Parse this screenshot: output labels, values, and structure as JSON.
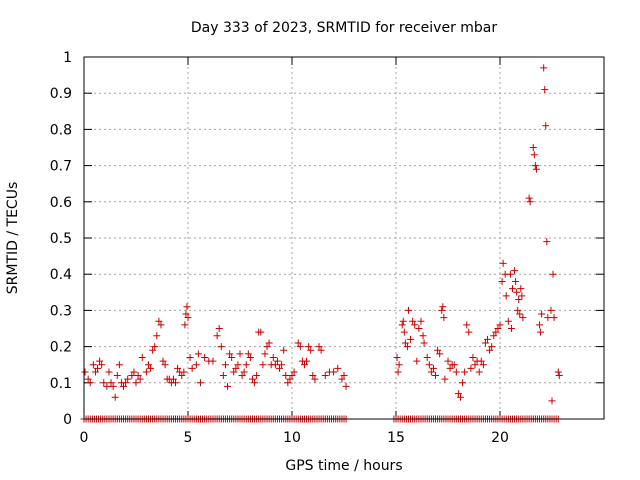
{
  "chart_data": {
    "type": "scatter",
    "title": "Day 333 of 2023, SRMTID for receiver mbar",
    "xlabel": "GPS time / hours",
    "ylabel": "SRMTID / TECUs",
    "xlim": [
      0,
      25
    ],
    "ylim": [
      0,
      1
    ],
    "x_ticks": [
      "0",
      "5",
      "10",
      "15",
      "20"
    ],
    "y_ticks": [
      "0",
      "0.1",
      "0.2",
      "0.3",
      "0.4",
      "0.5",
      "0.6",
      "0.7",
      "0.8",
      "0.9",
      "1"
    ],
    "grid": true,
    "marker": "+",
    "color": "#cc0000",
    "series": [
      {
        "name": "SRMTID",
        "points": [
          [
            0.05,
            0.13
          ],
          [
            0.2,
            0.11
          ],
          [
            0.3,
            0.1
          ],
          [
            0.45,
            0.15
          ],
          [
            0.55,
            0.13
          ],
          [
            0.65,
            0.14
          ],
          [
            0.75,
            0.16
          ],
          [
            0.85,
            0.15
          ],
          [
            0.95,
            0.1
          ],
          [
            1.1,
            0.09
          ],
          [
            1.2,
            0.13
          ],
          [
            1.3,
            0.1
          ],
          [
            1.4,
            0.09
          ],
          [
            1.5,
            0.06
          ],
          [
            1.6,
            0.12
          ],
          [
            1.7,
            0.15
          ],
          [
            1.8,
            0.1
          ],
          [
            1.9,
            0.09
          ],
          [
            2.0,
            0.1
          ],
          [
            2.1,
            0.11
          ],
          [
            2.3,
            0.12
          ],
          [
            2.4,
            0.13
          ],
          [
            2.5,
            0.1
          ],
          [
            2.6,
            0.12
          ],
          [
            2.7,
            0.11
          ],
          [
            2.8,
            0.17
          ],
          [
            3.0,
            0.13
          ],
          [
            3.1,
            0.15
          ],
          [
            3.2,
            0.14
          ],
          [
            3.3,
            0.19
          ],
          [
            3.4,
            0.2
          ],
          [
            3.5,
            0.23
          ],
          [
            3.6,
            0.27
          ],
          [
            3.7,
            0.26
          ],
          [
            3.8,
            0.16
          ],
          [
            3.9,
            0.15
          ],
          [
            4.0,
            0.11
          ],
          [
            4.1,
            0.11
          ],
          [
            4.2,
            0.1
          ],
          [
            4.3,
            0.11
          ],
          [
            4.4,
            0.1
          ],
          [
            4.5,
            0.14
          ],
          [
            4.6,
            0.13
          ],
          [
            4.7,
            0.12
          ],
          [
            4.8,
            0.13
          ],
          [
            4.85,
            0.26
          ],
          [
            4.9,
            0.29
          ],
          [
            4.95,
            0.31
          ],
          [
            5.0,
            0.28
          ],
          [
            5.1,
            0.17
          ],
          [
            5.2,
            0.14
          ],
          [
            5.4,
            0.15
          ],
          [
            5.5,
            0.18
          ],
          [
            5.6,
            0.1
          ],
          [
            5.8,
            0.17
          ],
          [
            6.0,
            0.16
          ],
          [
            6.2,
            0.16
          ],
          [
            6.4,
            0.23
          ],
          [
            6.5,
            0.25
          ],
          [
            6.6,
            0.2
          ],
          [
            6.7,
            0.12
          ],
          [
            6.8,
            0.15
          ],
          [
            6.9,
            0.09
          ],
          [
            7.0,
            0.18
          ],
          [
            7.1,
            0.17
          ],
          [
            7.2,
            0.13
          ],
          [
            7.3,
            0.14
          ],
          [
            7.4,
            0.15
          ],
          [
            7.5,
            0.18
          ],
          [
            7.6,
            0.12
          ],
          [
            7.7,
            0.13
          ],
          [
            7.8,
            0.15
          ],
          [
            7.9,
            0.18
          ],
          [
            8.0,
            0.17
          ],
          [
            8.1,
            0.11
          ],
          [
            8.2,
            0.1
          ],
          [
            8.3,
            0.12
          ],
          [
            8.4,
            0.24
          ],
          [
            8.5,
            0.24
          ],
          [
            8.6,
            0.15
          ],
          [
            8.7,
            0.18
          ],
          [
            8.8,
            0.2
          ],
          [
            8.9,
            0.21
          ],
          [
            9.0,
            0.15
          ],
          [
            9.1,
            0.17
          ],
          [
            9.2,
            0.15
          ],
          [
            9.3,
            0.16
          ],
          [
            9.4,
            0.14
          ],
          [
            9.5,
            0.15
          ],
          [
            9.6,
            0.19
          ],
          [
            9.7,
            0.12
          ],
          [
            9.8,
            0.1
          ],
          [
            9.9,
            0.11
          ],
          [
            10.0,
            0.12
          ],
          [
            10.1,
            0.13
          ],
          [
            10.3,
            0.21
          ],
          [
            10.4,
            0.2
          ],
          [
            10.5,
            0.16
          ],
          [
            10.6,
            0.15
          ],
          [
            10.7,
            0.16
          ],
          [
            10.8,
            0.2
          ],
          [
            10.9,
            0.19
          ],
          [
            11.0,
            0.12
          ],
          [
            11.1,
            0.11
          ],
          [
            11.3,
            0.2
          ],
          [
            11.4,
            0.19
          ],
          [
            11.6,
            0.12
          ],
          [
            11.8,
            0.13
          ],
          [
            12.0,
            0.13
          ],
          [
            12.2,
            0.14
          ],
          [
            12.4,
            0.11
          ],
          [
            12.5,
            0.12
          ],
          [
            12.6,
            0.09
          ],
          [
            15.05,
            0.17
          ],
          [
            15.1,
            0.13
          ],
          [
            15.15,
            0.15
          ],
          [
            15.3,
            0.26
          ],
          [
            15.35,
            0.27
          ],
          [
            15.4,
            0.24
          ],
          [
            15.45,
            0.21
          ],
          [
            15.55,
            0.2
          ],
          [
            15.6,
            0.3
          ],
          [
            15.7,
            0.22
          ],
          [
            15.8,
            0.27
          ],
          [
            15.9,
            0.26
          ],
          [
            16.0,
            0.16
          ],
          [
            16.1,
            0.25
          ],
          [
            16.2,
            0.27
          ],
          [
            16.3,
            0.23
          ],
          [
            16.35,
            0.21
          ],
          [
            16.5,
            0.17
          ],
          [
            16.6,
            0.15
          ],
          [
            16.7,
            0.13
          ],
          [
            16.8,
            0.14
          ],
          [
            16.9,
            0.12
          ],
          [
            17.0,
            0.19
          ],
          [
            17.1,
            0.18
          ],
          [
            17.2,
            0.3
          ],
          [
            17.25,
            0.31
          ],
          [
            17.3,
            0.28
          ],
          [
            17.35,
            0.11
          ],
          [
            17.5,
            0.16
          ],
          [
            17.6,
            0.14
          ],
          [
            17.7,
            0.15
          ],
          [
            17.8,
            0.15
          ],
          [
            17.9,
            0.13
          ],
          [
            18.0,
            0.07
          ],
          [
            18.1,
            0.06
          ],
          [
            18.2,
            0.1
          ],
          [
            18.3,
            0.13
          ],
          [
            18.4,
            0.26
          ],
          [
            18.5,
            0.24
          ],
          [
            18.6,
            0.14
          ],
          [
            18.7,
            0.17
          ],
          [
            18.8,
            0.15
          ],
          [
            18.9,
            0.16
          ],
          [
            19.0,
            0.13
          ],
          [
            19.1,
            0.16
          ],
          [
            19.2,
            0.15
          ],
          [
            19.3,
            0.21
          ],
          [
            19.4,
            0.22
          ],
          [
            19.5,
            0.19
          ],
          [
            19.6,
            0.2
          ],
          [
            19.7,
            0.23
          ],
          [
            19.8,
            0.24
          ],
          [
            19.9,
            0.25
          ],
          [
            20.0,
            0.26
          ],
          [
            20.1,
            0.38
          ],
          [
            20.15,
            0.43
          ],
          [
            20.25,
            0.4
          ],
          [
            20.3,
            0.34
          ],
          [
            20.4,
            0.27
          ],
          [
            20.5,
            0.4
          ],
          [
            20.55,
            0.25
          ],
          [
            20.6,
            0.36
          ],
          [
            20.7,
            0.41
          ],
          [
            20.75,
            0.38
          ],
          [
            20.8,
            0.35
          ],
          [
            20.85,
            0.3
          ],
          [
            20.9,
            0.33
          ],
          [
            20.95,
            0.29
          ],
          [
            21.0,
            0.36
          ],
          [
            21.05,
            0.34
          ],
          [
            21.1,
            0.28
          ],
          [
            21.4,
            0.61
          ],
          [
            21.45,
            0.6
          ],
          [
            21.6,
            0.75
          ],
          [
            21.65,
            0.73
          ],
          [
            21.7,
            0.7
          ],
          [
            21.75,
            0.69
          ],
          [
            21.9,
            0.26
          ],
          [
            21.95,
            0.24
          ],
          [
            22.0,
            0.29
          ],
          [
            22.1,
            0.97
          ],
          [
            22.15,
            0.91
          ],
          [
            22.2,
            0.81
          ],
          [
            22.25,
            0.49
          ],
          [
            22.3,
            0.28
          ],
          [
            22.45,
            0.3
          ],
          [
            22.5,
            0.05
          ],
          [
            22.55,
            0.4
          ],
          [
            22.6,
            0.28
          ],
          [
            22.8,
            0.13
          ],
          [
            22.85,
            0.12
          ]
        ]
      }
    ],
    "zero_points": [
      0.0,
      12.6,
      14.9,
      22.85
    ],
    "zero_step": 0.1
  }
}
